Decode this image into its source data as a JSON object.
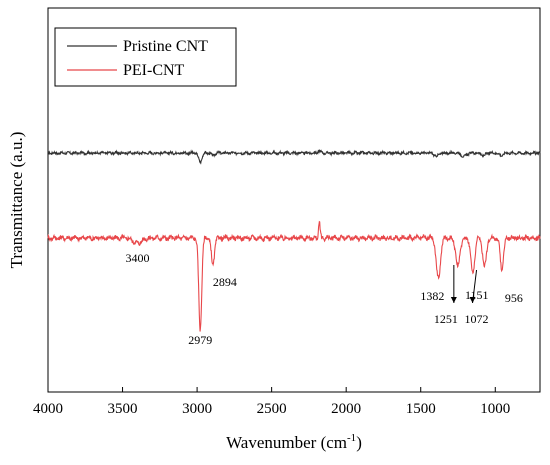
{
  "chart_data": {
    "type": "line",
    "xlabel": "Wavenumber (cm",
    "xlabel_sup": "-1",
    "xlabel_close": ")",
    "ylabel": "Transmittance (a.u.)",
    "xlim": [
      4000,
      700
    ],
    "x_reversed": true,
    "y_ticks_shown": false,
    "x_ticks": [
      4000,
      3500,
      3000,
      2500,
      2000,
      1500,
      1000
    ],
    "x_tick_labels": [
      "4000",
      "3500",
      "3000",
      "2500",
      "2000",
      "1500",
      "1000"
    ],
    "legend_position": "top-left",
    "series": [
      {
        "name": "Pristine CNT",
        "color": "#333333",
        "baseline": 1.0,
        "noise": 0.006,
        "peaks": [
          {
            "x": 2979,
            "depth": 0.05,
            "width": 16
          },
          {
            "x": 2894,
            "depth": 0.015,
            "width": 14
          },
          {
            "x": 2180,
            "depth": -0.012,
            "width": 12
          },
          {
            "x": 1395,
            "depth": 0.018,
            "width": 22
          },
          {
            "x": 1210,
            "depth": 0.02,
            "width": 22
          },
          {
            "x": 1080,
            "depth": 0.014,
            "width": 20
          },
          {
            "x": 960,
            "depth": 0.014,
            "width": 18
          }
        ]
      },
      {
        "name": "PEI-CNT",
        "color": "#e8474a",
        "baseline": 0.0,
        "noise": 0.008,
        "peaks": [
          {
            "x": 3400,
            "depth": 0.02,
            "width": 40
          },
          {
            "x": 2979,
            "depth": 0.36,
            "width": 14
          },
          {
            "x": 2894,
            "depth": 0.11,
            "width": 14
          },
          {
            "x": 2180,
            "depth": -0.06,
            "width": 8
          },
          {
            "x": 1382,
            "depth": 0.16,
            "width": 20
          },
          {
            "x": 1251,
            "depth": 0.11,
            "width": 20
          },
          {
            "x": 1151,
            "depth": 0.14,
            "width": 18
          },
          {
            "x": 1072,
            "depth": 0.11,
            "width": 18
          },
          {
            "x": 956,
            "depth": 0.12,
            "width": 16
          }
        ]
      }
    ],
    "annotations": [
      {
        "label": "3400",
        "x": 3400
      },
      {
        "label": "2979",
        "x": 2979
      },
      {
        "label": "2894",
        "x": 2894
      },
      {
        "label": "1382",
        "x": 1382
      },
      {
        "label": "1251",
        "x": 1251,
        "arrow": true
      },
      {
        "label": "1151",
        "x": 1151
      },
      {
        "label": "1072",
        "x": 1072,
        "arrow": true
      },
      {
        "label": "956",
        "x": 956
      }
    ]
  }
}
